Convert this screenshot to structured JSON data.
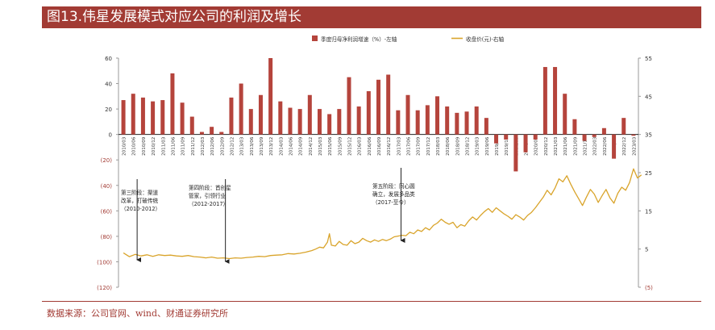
{
  "title": "图13.伟星发展模式对应公司的利润及增长",
  "source": "数据来源：公司官网、wind、财通证券研究所",
  "colors": {
    "bar": "#b5443c",
    "line": "#d9a42b",
    "accent": "#a23b34",
    "axis": "#333333"
  },
  "chart_data": {
    "type": "bar+line",
    "legend": {
      "placement": "top-right",
      "bar_label": "季度归母净利润增速（%）-左轴",
      "line_label": "收盘价(元)-右轴"
    },
    "left_axis": {
      "range": [
        -120,
        60
      ],
      "ticks": [
        {
          "v": 60,
          "label": "60"
        },
        {
          "v": 40,
          "label": "40"
        },
        {
          "v": 20,
          "label": "20"
        },
        {
          "v": 0,
          "label": "0"
        },
        {
          "v": -20,
          "label": "(20)"
        },
        {
          "v": -40,
          "label": "(40)"
        },
        {
          "v": -60,
          "label": "(60)"
        },
        {
          "v": -80,
          "label": "(80)"
        },
        {
          "v": -100,
          "label": "(100)"
        },
        {
          "v": -120,
          "label": "(120)"
        }
      ]
    },
    "right_axis": {
      "range": [
        -5,
        55
      ],
      "ticks": [
        {
          "v": 55,
          "label": "55"
        },
        {
          "v": 45,
          "label": "45"
        },
        {
          "v": 35,
          "label": "35"
        },
        {
          "v": 25,
          "label": "25"
        },
        {
          "v": 15,
          "label": "15"
        },
        {
          "v": 5,
          "label": "5"
        },
        {
          "v": -5,
          "label": "(5)"
        }
      ]
    },
    "categories": [
      "2010/03",
      "2010/06",
      "2010/09",
      "2010/12",
      "2011/03",
      "2011/06",
      "2011/09",
      "2011/12",
      "2012/03",
      "2012/06",
      "2012/09",
      "2012/12",
      "2013/03",
      "2013/06",
      "2013/09",
      "2013/12",
      "2014/03",
      "2014/06",
      "2014/09",
      "2014/12",
      "2015/03",
      "2015/06",
      "2015/09",
      "2015/12",
      "2016/03",
      "2016/06",
      "2016/09",
      "2016/12",
      "2017/03",
      "2017/06",
      "2017/09",
      "2017/12",
      "2018/03",
      "2018/06",
      "2018/09",
      "2018/12",
      "2019/03",
      "2019/06",
      "2019/09",
      "2019/12",
      "2020/03",
      "2020/06",
      "2020/09",
      "2020/12",
      "2021/03",
      "2021/06",
      "2021/09",
      "2021/12",
      "2022/03",
      "2022/06",
      "2022/09",
      "2022/12",
      "2023/03"
    ],
    "profit_growth": [
      27,
      32,
      29,
      26,
      27,
      48,
      25,
      14,
      2,
      6,
      2,
      29,
      40,
      20,
      31,
      60,
      26,
      21,
      20,
      31,
      20,
      16,
      20,
      45,
      22,
      34,
      43,
      47,
      19,
      31,
      19,
      23,
      30,
      22,
      17,
      18,
      22,
      13,
      -7,
      -4,
      -29,
      -14,
      -4,
      53,
      53,
      32,
      12,
      -5,
      -2,
      5,
      -19,
      13,
      -1
    ],
    "price_series": [
      [
        0.0,
        4.0
      ],
      [
        0.6,
        3.0
      ],
      [
        1.2,
        3.6
      ],
      [
        1.8,
        3.2
      ],
      [
        2.4,
        3.5
      ],
      [
        3.0,
        3.1
      ],
      [
        3.6,
        3.5
      ],
      [
        4.2,
        3.3
      ],
      [
        4.8,
        3.4
      ],
      [
        5.4,
        3.2
      ],
      [
        6.0,
        3.1
      ],
      [
        6.6,
        3.3
      ],
      [
        7.2,
        3.0
      ],
      [
        7.8,
        2.9
      ],
      [
        8.4,
        2.7
      ],
      [
        9.0,
        2.9
      ],
      [
        9.6,
        2.6
      ],
      [
        10.2,
        2.7
      ],
      [
        10.8,
        2.5
      ],
      [
        11.4,
        2.7
      ],
      [
        12.0,
        2.6
      ],
      [
        12.6,
        2.8
      ],
      [
        13.2,
        2.9
      ],
      [
        13.8,
        3.1
      ],
      [
        14.4,
        3.0
      ],
      [
        15.0,
        3.3
      ],
      [
        15.6,
        3.4
      ],
      [
        16.2,
        3.5
      ],
      [
        16.8,
        3.8
      ],
      [
        17.4,
        3.7
      ],
      [
        18.0,
        3.9
      ],
      [
        18.6,
        4.2
      ],
      [
        19.2,
        4.6
      ],
      [
        19.6,
        5.0
      ],
      [
        20.0,
        5.5
      ],
      [
        20.4,
        5.3
      ],
      [
        20.8,
        6.8
      ],
      [
        21.0,
        9.0
      ],
      [
        21.2,
        6.0
      ],
      [
        21.6,
        5.8
      ],
      [
        22.0,
        7.0
      ],
      [
        22.4,
        6.2
      ],
      [
        22.8,
        6.0
      ],
      [
        23.2,
        7.2
      ],
      [
        23.6,
        6.4
      ],
      [
        24.0,
        6.8
      ],
      [
        24.4,
        7.8
      ],
      [
        24.8,
        7.2
      ],
      [
        25.2,
        6.8
      ],
      [
        25.6,
        7.4
      ],
      [
        26.0,
        7.0
      ],
      [
        26.4,
        7.5
      ],
      [
        26.8,
        7.2
      ],
      [
        27.2,
        7.6
      ],
      [
        27.6,
        8.2
      ],
      [
        28.0,
        8.4
      ],
      [
        28.4,
        8.6
      ],
      [
        28.8,
        8.5
      ],
      [
        29.2,
        9.4
      ],
      [
        29.6,
        9.0
      ],
      [
        30.0,
        10.0
      ],
      [
        30.4,
        9.6
      ],
      [
        30.8,
        10.6
      ],
      [
        31.2,
        10.0
      ],
      [
        31.6,
        11.2
      ],
      [
        32.0,
        11.8
      ],
      [
        32.4,
        12.8
      ],
      [
        32.8,
        12.0
      ],
      [
        33.2,
        11.5
      ],
      [
        33.6,
        12.0
      ],
      [
        34.0,
        10.6
      ],
      [
        34.4,
        11.4
      ],
      [
        34.8,
        11.0
      ],
      [
        35.2,
        12.4
      ],
      [
        35.6,
        13.4
      ],
      [
        36.0,
        12.6
      ],
      [
        36.4,
        13.8
      ],
      [
        36.8,
        14.8
      ],
      [
        37.2,
        15.6
      ],
      [
        37.6,
        14.6
      ],
      [
        38.0,
        15.8
      ],
      [
        38.4,
        15.0
      ],
      [
        38.8,
        14.2
      ],
      [
        39.2,
        13.6
      ],
      [
        39.6,
        12.8
      ],
      [
        40.0,
        14.0
      ],
      [
        40.4,
        13.4
      ],
      [
        40.8,
        12.6
      ],
      [
        41.2,
        13.8
      ],
      [
        41.6,
        14.6
      ],
      [
        42.0,
        15.8
      ],
      [
        42.4,
        17.2
      ],
      [
        42.8,
        18.6
      ],
      [
        43.2,
        20.4
      ],
      [
        43.6,
        19.2
      ],
      [
        44.0,
        21.0
      ],
      [
        44.4,
        23.4
      ],
      [
        44.8,
        22.6
      ],
      [
        45.2,
        24.2
      ],
      [
        45.6,
        22.0
      ],
      [
        46.0,
        20.0
      ],
      [
        46.4,
        18.2
      ],
      [
        46.8,
        16.4
      ],
      [
        47.2,
        18.6
      ],
      [
        47.6,
        20.6
      ],
      [
        48.0,
        19.4
      ],
      [
        48.4,
        17.2
      ],
      [
        48.8,
        19.0
      ],
      [
        49.2,
        20.6
      ],
      [
        49.6,
        18.4
      ],
      [
        50.0,
        17.0
      ],
      [
        50.4,
        19.6
      ],
      [
        50.8,
        21.2
      ],
      [
        51.2,
        20.4
      ],
      [
        51.6,
        22.4
      ],
      [
        52.0,
        26.0
      ],
      [
        52.4,
        23.6
      ],
      [
        52.8,
        24.4
      ]
    ],
    "annotations": [
      {
        "text": [
          "第三阶段：渠道",
          "改革，打破传统",
          "（2010-2012）"
        ],
        "arrow_x_index": 1.4
      },
      {
        "text": [
          "第四阶段：首创星",
          "管家，引领行业",
          "（2012-2017）"
        ],
        "arrow_x_index": 10.4
      },
      {
        "text": [
          "第五阶段：同心圆",
          "确立，发展多品类",
          "（2017-至今）"
        ],
        "arrow_x_index": 28.3
      }
    ]
  }
}
